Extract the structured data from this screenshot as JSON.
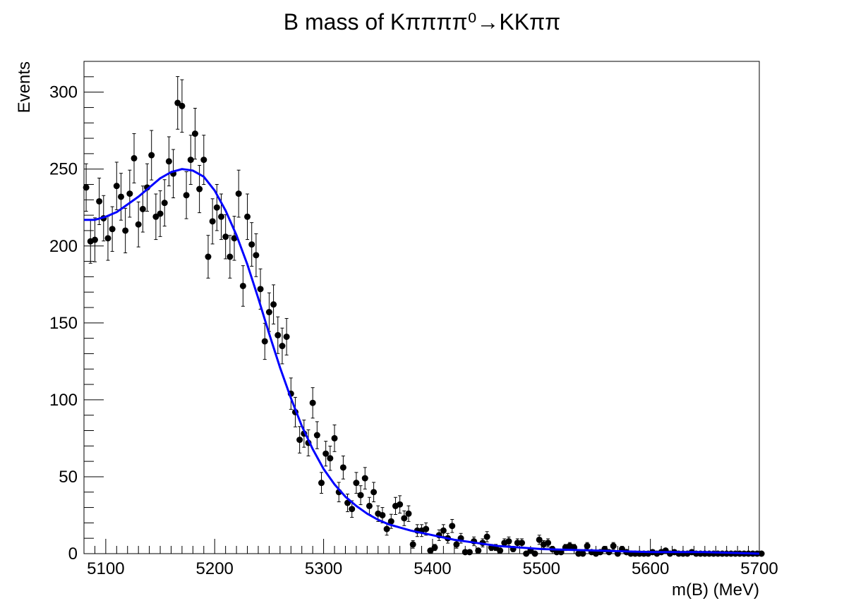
{
  "chart_data": {
    "type": "scatter",
    "title": "B mass of Kππππ⁰→KKππ",
    "xlabel": "m(B) (MeV)",
    "ylabel": "Events",
    "xlim": [
      5080,
      5700
    ],
    "ylim": [
      0,
      320
    ],
    "x_ticks": [
      5100,
      5200,
      5300,
      5400,
      5500,
      5600,
      5700
    ],
    "y_ticks": [
      0,
      50,
      100,
      150,
      200,
      250,
      300
    ],
    "grid": false,
    "legend": "none",
    "colors": {
      "points": "#000000",
      "fit": "#0000ff",
      "frame": "#000000"
    },
    "series": [
      {
        "type": "points_with_errors",
        "bin_width": 4,
        "first_bin_center": 5082,
        "values": [
          238,
          203,
          204,
          229,
          218,
          205,
          211,
          239,
          232,
          210,
          234,
          257,
          214,
          224,
          238,
          259,
          219,
          221,
          228,
          255,
          247,
          293,
          291,
          233,
          256,
          273,
          237,
          256,
          193,
          216,
          225,
          219,
          206,
          193,
          205,
          234,
          174,
          219,
          201,
          194,
          172,
          138,
          157,
          162,
          142,
          135,
          141,
          104,
          92,
          74,
          78,
          72,
          98,
          77,
          46,
          65,
          62,
          75,
          40,
          56,
          33,
          29,
          46,
          38,
          49,
          31,
          40,
          26,
          25,
          16,
          21,
          31,
          32,
          23,
          26,
          6,
          15,
          15,
          16,
          2,
          4,
          12,
          15,
          10,
          18,
          6,
          10,
          1,
          1,
          8,
          2,
          7,
          11,
          4,
          4,
          2,
          7,
          8,
          3,
          7,
          7,
          0,
          2,
          0,
          9,
          6,
          7,
          3,
          1,
          1,
          4,
          5,
          4,
          0,
          0,
          5,
          1,
          0,
          1,
          3,
          1,
          5,
          0,
          3,
          1,
          0,
          0,
          0,
          0,
          0,
          1,
          0,
          1,
          2,
          0,
          1,
          0,
          0,
          0,
          1,
          0,
          0,
          0,
          0,
          0,
          0,
          0,
          0,
          0,
          0,
          0,
          0,
          0,
          0,
          0,
          0
        ]
      },
      {
        "type": "fit_curve",
        "x": [
          5080,
          5090,
          5100,
          5110,
          5120,
          5130,
          5140,
          5150,
          5160,
          5170,
          5180,
          5190,
          5200,
          5210,
          5220,
          5230,
          5240,
          5250,
          5260,
          5270,
          5280,
          5290,
          5300,
          5310,
          5320,
          5330,
          5340,
          5350,
          5360,
          5370,
          5380,
          5400,
          5420,
          5440,
          5460,
          5480,
          5500,
          5550,
          5600,
          5650,
          5700
        ],
        "values": [
          217,
          217,
          219,
          222,
          227,
          232,
          238,
          244,
          248,
          250,
          249,
          245,
          236,
          223,
          207,
          188,
          166,
          143,
          121,
          101,
          83,
          68,
          55,
          45,
          37,
          31,
          26,
          22,
          19,
          17,
          15,
          12,
          9,
          7,
          5,
          4,
          3,
          2,
          1,
          1,
          0
        ]
      }
    ]
  }
}
